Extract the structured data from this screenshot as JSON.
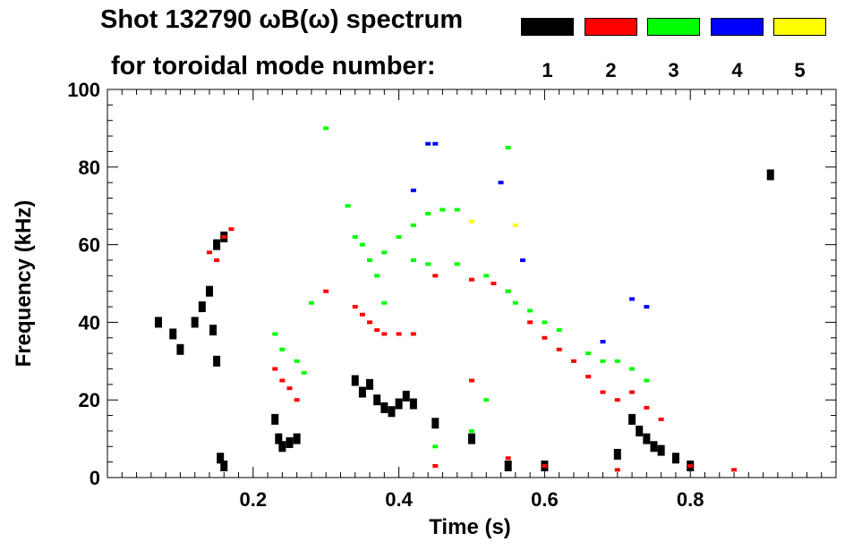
{
  "title": {
    "line1": "Shot 132790 ωB(ω) spectrum",
    "line2": "for toroidal mode number:"
  },
  "legend": [
    {
      "mode": "1",
      "color": "#000000"
    },
    {
      "mode": "2",
      "color": "#ff0000"
    },
    {
      "mode": "3",
      "color": "#00ff00"
    },
    {
      "mode": "4",
      "color": "#0000ff"
    },
    {
      "mode": "5",
      "color": "#ffff00"
    }
  ],
  "chart_data": {
    "type": "scatter",
    "title": "Shot 132790 ωB(ω) spectrum",
    "xlabel": "Time (s)",
    "ylabel": "Frequency (kHz)",
    "xlim": [
      0.0,
      1.0
    ],
    "ylim": [
      0,
      100
    ],
    "xticks": [
      0.2,
      0.4,
      0.6,
      0.8
    ],
    "xtick_labels": [
      "0.2",
      "0.4",
      "0.6",
      "0.8"
    ],
    "yticks": [
      0,
      20,
      40,
      60,
      80,
      100
    ],
    "ytick_labels": [
      "0",
      "20",
      "40",
      "60",
      "80",
      "100"
    ],
    "series": [
      {
        "name": "n=1",
        "color": "#000000",
        "points": [
          [
            0.07,
            40
          ],
          [
            0.09,
            37
          ],
          [
            0.1,
            33
          ],
          [
            0.12,
            40
          ],
          [
            0.13,
            44
          ],
          [
            0.14,
            48
          ],
          [
            0.145,
            38
          ],
          [
            0.15,
            60
          ],
          [
            0.15,
            30
          ],
          [
            0.155,
            5
          ],
          [
            0.16,
            62
          ],
          [
            0.16,
            3
          ],
          [
            0.23,
            15
          ],
          [
            0.235,
            10
          ],
          [
            0.24,
            8
          ],
          [
            0.25,
            9
          ],
          [
            0.26,
            10
          ],
          [
            0.34,
            25
          ],
          [
            0.35,
            22
          ],
          [
            0.36,
            24
          ],
          [
            0.37,
            20
          ],
          [
            0.38,
            18
          ],
          [
            0.39,
            17
          ],
          [
            0.4,
            19
          ],
          [
            0.41,
            21
          ],
          [
            0.42,
            19
          ],
          [
            0.45,
            14
          ],
          [
            0.5,
            10
          ],
          [
            0.55,
            3
          ],
          [
            0.6,
            3
          ],
          [
            0.7,
            6
          ],
          [
            0.72,
            15
          ],
          [
            0.73,
            12
          ],
          [
            0.74,
            10
          ],
          [
            0.75,
            8
          ],
          [
            0.76,
            7
          ],
          [
            0.78,
            5
          ],
          [
            0.8,
            3
          ],
          [
            0.91,
            78
          ]
        ]
      },
      {
        "name": "n=2",
        "color": "#ff0000",
        "points": [
          [
            0.14,
            58
          ],
          [
            0.15,
            56
          ],
          [
            0.16,
            62
          ],
          [
            0.17,
            64
          ],
          [
            0.23,
            28
          ],
          [
            0.24,
            25
          ],
          [
            0.25,
            23
          ],
          [
            0.26,
            20
          ],
          [
            0.3,
            48
          ],
          [
            0.34,
            44
          ],
          [
            0.35,
            42
          ],
          [
            0.36,
            40
          ],
          [
            0.37,
            38
          ],
          [
            0.38,
            37
          ],
          [
            0.4,
            37
          ],
          [
            0.42,
            37
          ],
          [
            0.45,
            52
          ],
          [
            0.5,
            51
          ],
          [
            0.53,
            50
          ],
          [
            0.55,
            48
          ],
          [
            0.5,
            25
          ],
          [
            0.58,
            40
          ],
          [
            0.6,
            36
          ],
          [
            0.62,
            33
          ],
          [
            0.64,
            30
          ],
          [
            0.66,
            26
          ],
          [
            0.68,
            22
          ],
          [
            0.7,
            20
          ],
          [
            0.72,
            22
          ],
          [
            0.74,
            18
          ],
          [
            0.76,
            15
          ],
          [
            0.45,
            3
          ],
          [
            0.55,
            5
          ],
          [
            0.6,
            3
          ],
          [
            0.7,
            2
          ],
          [
            0.8,
            3
          ],
          [
            0.86,
            2
          ]
        ]
      },
      {
        "name": "n=3",
        "color": "#00ff00",
        "points": [
          [
            0.23,
            37
          ],
          [
            0.24,
            33
          ],
          [
            0.26,
            30
          ],
          [
            0.27,
            27
          ],
          [
            0.28,
            45
          ],
          [
            0.33,
            70
          ],
          [
            0.34,
            62
          ],
          [
            0.35,
            60
          ],
          [
            0.36,
            56
          ],
          [
            0.37,
            52
          ],
          [
            0.38,
            45
          ],
          [
            0.38,
            58
          ],
          [
            0.4,
            62
          ],
          [
            0.42,
            65
          ],
          [
            0.44,
            68
          ],
          [
            0.46,
            69
          ],
          [
            0.48,
            69
          ],
          [
            0.5,
            66
          ],
          [
            0.42,
            56
          ],
          [
            0.44,
            55
          ],
          [
            0.48,
            55
          ],
          [
            0.52,
            52
          ],
          [
            0.55,
            48
          ],
          [
            0.56,
            45
          ],
          [
            0.58,
            43
          ],
          [
            0.6,
            40
          ],
          [
            0.62,
            38
          ],
          [
            0.66,
            32
          ],
          [
            0.68,
            30
          ],
          [
            0.7,
            30
          ],
          [
            0.72,
            28
          ],
          [
            0.74,
            25
          ],
          [
            0.52,
            20
          ],
          [
            0.5,
            12
          ],
          [
            0.45,
            8
          ],
          [
            0.55,
            85
          ],
          [
            0.3,
            90
          ]
        ]
      },
      {
        "name": "n=4",
        "color": "#0000ff",
        "points": [
          [
            0.44,
            86
          ],
          [
            0.45,
            86
          ],
          [
            0.42,
            74
          ],
          [
            0.54,
            76
          ],
          [
            0.57,
            56
          ],
          [
            0.72,
            46
          ],
          [
            0.74,
            44
          ],
          [
            0.68,
            35
          ]
        ]
      },
      {
        "name": "n=5",
        "color": "#ffff00",
        "points": [
          [
            0.5,
            66
          ],
          [
            0.56,
            65
          ]
        ]
      }
    ]
  }
}
